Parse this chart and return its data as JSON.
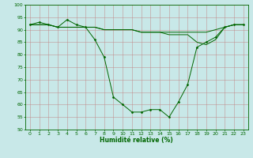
{
  "x": [
    0,
    1,
    2,
    3,
    4,
    5,
    6,
    7,
    8,
    9,
    10,
    11,
    12,
    13,
    14,
    15,
    16,
    17,
    18,
    19,
    20,
    21,
    22,
    23
  ],
  "line1": [
    92,
    93,
    92,
    91,
    94,
    92,
    91,
    86,
    79,
    63,
    60,
    57,
    57,
    58,
    58,
    55,
    61,
    68,
    83,
    85,
    87,
    91,
    92,
    92
  ],
  "line2": [
    92,
    92,
    92,
    91,
    91,
    91,
    91,
    91,
    90,
    90,
    90,
    90,
    89,
    89,
    89,
    89,
    89,
    89,
    89,
    89,
    90,
    91,
    92,
    92
  ],
  "line3": [
    92,
    92,
    92,
    91,
    91,
    91,
    91,
    91,
    90,
    90,
    90,
    90,
    89,
    89,
    89,
    88,
    88,
    88,
    85,
    84,
    86,
    91,
    92,
    92
  ],
  "bg_color": "#c8e8e8",
  "grid_color": "#c08080",
  "line_color": "#006600",
  "marker": "D",
  "marker_size": 1.5,
  "xlabel": "Humidité relative (%)",
  "xlim": [
    -0.5,
    23.5
  ],
  "ylim": [
    50,
    100
  ],
  "yticks": [
    50,
    55,
    60,
    65,
    70,
    75,
    80,
    85,
    90,
    95,
    100
  ],
  "xticks": [
    0,
    1,
    2,
    3,
    4,
    5,
    6,
    7,
    8,
    9,
    10,
    11,
    12,
    13,
    14,
    15,
    16,
    17,
    18,
    19,
    20,
    21,
    22,
    23
  ],
  "tick_fontsize": 4.5,
  "xlabel_fontsize": 5.5,
  "linewidth": 0.7
}
